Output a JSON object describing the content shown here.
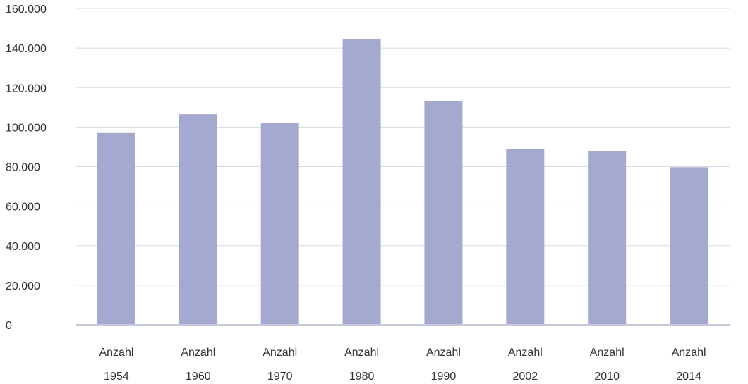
{
  "chart_data": {
    "type": "bar",
    "categories": [
      [
        "Anzahl",
        "1954"
      ],
      [
        "Anzahl",
        "1960"
      ],
      [
        "Anzahl",
        "1970"
      ],
      [
        "Anzahl",
        "1980"
      ],
      [
        "Anzahl",
        "1990"
      ],
      [
        "Anzahl",
        "2002"
      ],
      [
        "Anzahl",
        "2010"
      ],
      [
        "Anzahl",
        "2014"
      ]
    ],
    "values": [
      97000,
      106500,
      102000,
      144500,
      113000,
      89000,
      88000,
      79700
    ],
    "yticks": [
      "0",
      "20.000",
      "40.000",
      "60.000",
      "80.000",
      "100.000",
      "120.000",
      "140.000",
      "160.000"
    ],
    "ytick_values": [
      0,
      20000,
      40000,
      60000,
      80000,
      100000,
      120000,
      140000,
      160000
    ],
    "ylim": [
      0,
      160000
    ],
    "title": "",
    "xlabel": "",
    "ylabel": "",
    "legend": "none",
    "grid": true,
    "colors": {
      "bar": "#a5a8cf",
      "grid": "#d9d9e6",
      "axis": "#c8c8d8",
      "text": "#333333"
    }
  }
}
